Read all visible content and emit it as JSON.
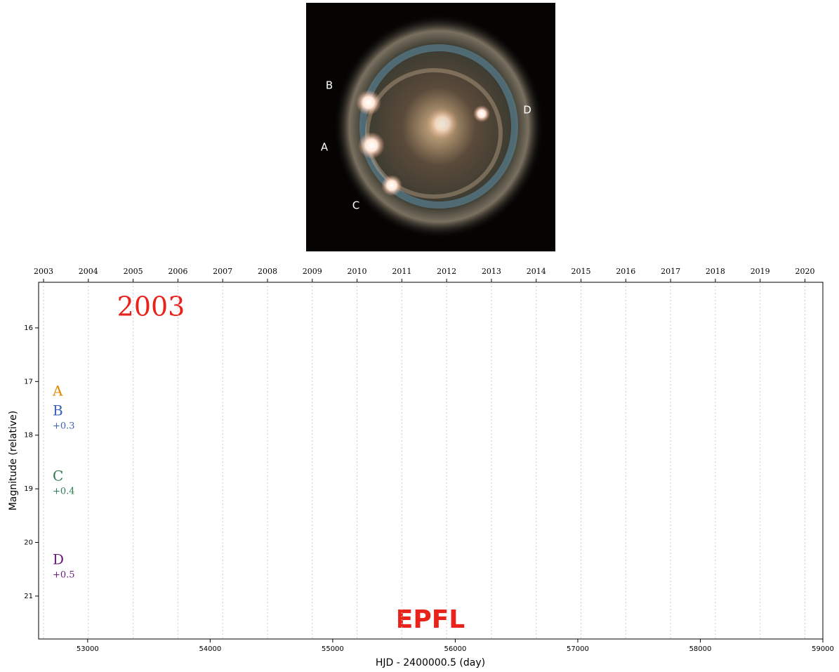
{
  "image": {
    "labels": [
      "B",
      "A",
      "C",
      "D"
    ]
  },
  "chart_data": {
    "type": "line",
    "title": "2003",
    "title_color": "#e8231b",
    "xlabel": "HJD - 2400000.5 (day)",
    "ylabel": "Magnitude (relative)",
    "xlim": [
      52600,
      59000
    ],
    "xticks": [
      53000,
      54000,
      55000,
      56000,
      57000,
      58000,
      59000
    ],
    "ylim": [
      15.15,
      21.8
    ],
    "y_inverted": true,
    "yticks": [
      16,
      17,
      18,
      19,
      20,
      21
    ],
    "x2lim": [
      2002.89,
      2020.4
    ],
    "x2ticks": [
      2003,
      2004,
      2005,
      2006,
      2007,
      2008,
      2009,
      2010,
      2011,
      2012,
      2013,
      2014,
      2015,
      2016,
      2017,
      2018,
      2019,
      2020
    ],
    "grid": true,
    "series": [
      {
        "name": "A",
        "color": "#e08a00",
        "values": []
      },
      {
        "name": "B",
        "color": "#3a62b8",
        "offset": "+0.3",
        "values": []
      },
      {
        "name": "C",
        "color": "#2e7a4e",
        "offset": "+0.4",
        "values": []
      },
      {
        "name": "D",
        "color": "#6a1a7a",
        "offset": "+0.5",
        "values": []
      }
    ],
    "logo": "EPFL",
    "logo_color": "#e8231b"
  }
}
